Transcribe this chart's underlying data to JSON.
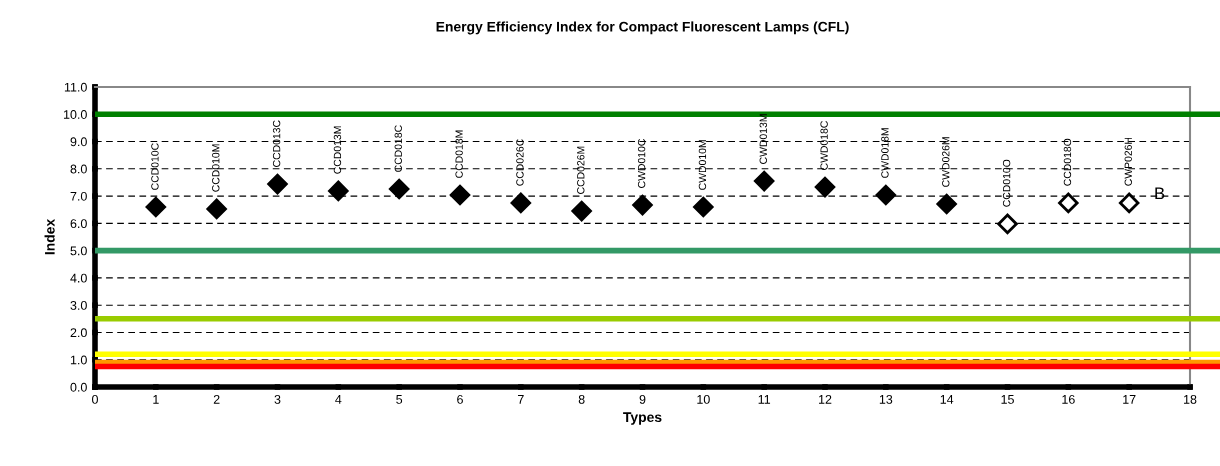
{
  "chart_data": {
    "type": "scatter",
    "title": "Energy Efficiency Index for Compact Fluorescent Lamps (CFL)",
    "xlabel": "Types",
    "ylabel": "Index",
    "xlim": [
      0,
      18
    ],
    "xticks": [
      0,
      1,
      2,
      3,
      4,
      5,
      6,
      7,
      8,
      9,
      10,
      11,
      12,
      13,
      14,
      15,
      16,
      17,
      18
    ],
    "ylim": [
      0,
      11
    ],
    "yticks": [
      {
        "value": 0,
        "label": "0.0"
      },
      {
        "value": 1,
        "label": "1.0"
      },
      {
        "value": 2,
        "label": "2.0"
      },
      {
        "value": 3,
        "label": "3.0"
      },
      {
        "value": 4,
        "label": "4.0"
      },
      {
        "value": 5,
        "label": "5.0"
      },
      {
        "value": 6,
        "label": "6.0"
      },
      {
        "value": 7,
        "label": "7.0"
      },
      {
        "value": 8,
        "label": "8.0"
      },
      {
        "value": 9,
        "label": "9.0"
      },
      {
        "value": 10,
        "label": "10.0"
      },
      {
        "value": 11,
        "label": "11.0"
      }
    ],
    "grid": "y",
    "marker": "diamond",
    "series": [
      {
        "color": "#000000",
        "x": [
          1,
          2,
          3,
          4,
          5,
          6,
          7,
          8,
          9,
          10,
          11,
          12,
          13,
          14
        ],
        "values": [
          6.6,
          6.53,
          7.44,
          7.19,
          7.26,
          7.04,
          6.75,
          6.45,
          6.67,
          6.6,
          7.55,
          7.33,
          7.04,
          6.71
        ]
      },
      {
        "color": "#ffffff",
        "x": [
          15,
          16,
          17
        ],
        "values": [
          5.98,
          6.75,
          6.75
        ]
      }
    ],
    "ref_lines": [
      {
        "axis": "y",
        "value": 10,
        "color": "#008000"
      },
      {
        "axis": "y",
        "value": 5,
        "color": "#339966"
      },
      {
        "axis": "y",
        "value": 2.5,
        "color": "#99cc00"
      },
      {
        "axis": "y",
        "value": 1.2,
        "color": "#ffff00"
      },
      {
        "axis": "y",
        "value": 0.9,
        "color": "#ff9900"
      },
      {
        "axis": "y",
        "value": 0.75,
        "color": "#ff0000"
      }
    ],
    "annotations": [
      {
        "text": "CCD010C",
        "x": 1,
        "y": 6.6
      },
      {
        "text": "CCD010M",
        "x": 2,
        "y": 6.53
      },
      {
        "text": "CCD013C",
        "x": 3,
        "y": 7.44
      },
      {
        "text": "CCD013M",
        "x": 4,
        "y": 7.19
      },
      {
        "text": "CCD018C",
        "x": 5,
        "y": 7.26
      },
      {
        "text": "CCD018M",
        "x": 6,
        "y": 7.04
      },
      {
        "text": "CCD026C",
        "x": 7,
        "y": 6.75
      },
      {
        "text": "CCD026M",
        "x": 8,
        "y": 6.45
      },
      {
        "text": "CWD010C",
        "x": 9,
        "y": 6.67
      },
      {
        "text": "CWD010M",
        "x": 10,
        "y": 6.6
      },
      {
        "text": "CWD013M",
        "x": 11,
        "y": 7.55
      },
      {
        "text": "CWD018C",
        "x": 12,
        "y": 7.33
      },
      {
        "text": "CWD018M",
        "x": 13,
        "y": 7.04
      },
      {
        "text": "CWD026M",
        "x": 14,
        "y": 6.71
      },
      {
        "text": "CCD010O",
        "x": 15,
        "y": 5.98
      },
      {
        "text": "CCD018O",
        "x": 16,
        "y": 6.75
      },
      {
        "text": "CWP026H",
        "x": 17,
        "y": 6.75
      },
      "B"
    ]
  }
}
